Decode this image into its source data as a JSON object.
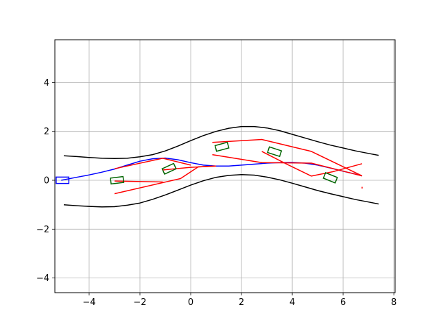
{
  "chart_data": {
    "type": "line",
    "title": "",
    "xlabel": "",
    "ylabel": "",
    "xlim": [
      -5.35,
      8.05
    ],
    "ylim": [
      -4.6,
      5.75
    ],
    "grid": true,
    "x_ticks": [
      -4,
      -2,
      0,
      2,
      4,
      6,
      8
    ],
    "y_ticks": [
      -4,
      -2,
      0,
      2,
      4
    ],
    "x_tick_labels": [
      "−4",
      "−2",
      "0",
      "2",
      "4",
      "6",
      "8"
    ],
    "y_tick_labels": [
      "−4",
      "−2",
      "0",
      "2",
      "4"
    ],
    "colors": {
      "road_boundary": "#000000",
      "path": "#0000ff",
      "rejected_paths": "#ff0000",
      "obstacles": "#006400",
      "start_vehicle": "#0000ff"
    },
    "series": [
      {
        "kind": "road_boundary_upper",
        "points": [
          [
            -5,
            1.0
          ],
          [
            -4.5,
            0.97
          ],
          [
            -4,
            0.93
          ],
          [
            -3.5,
            0.9
          ],
          [
            -3,
            0.89
          ],
          [
            -2.5,
            0.9
          ],
          [
            -2,
            0.96
          ],
          [
            -1.5,
            1.05
          ],
          [
            -1,
            1.2
          ],
          [
            -0.5,
            1.4
          ],
          [
            0,
            1.62
          ],
          [
            0.5,
            1.83
          ],
          [
            1,
            2.0
          ],
          [
            1.5,
            2.13
          ],
          [
            2,
            2.2
          ],
          [
            2.5,
            2.2
          ],
          [
            3,
            2.14
          ],
          [
            3.5,
            2.03
          ],
          [
            4,
            1.88
          ],
          [
            4.5,
            1.73
          ],
          [
            5,
            1.58
          ],
          [
            5.5,
            1.44
          ],
          [
            6,
            1.32
          ],
          [
            6.5,
            1.2
          ],
          [
            7,
            1.1
          ],
          [
            7.4,
            1.02
          ]
        ]
      },
      {
        "kind": "road_boundary_lower",
        "points": [
          [
            -5,
            -1.0
          ],
          [
            -4.5,
            -1.04
          ],
          [
            -4,
            -1.07
          ],
          [
            -3.5,
            -1.09
          ],
          [
            -3,
            -1.08
          ],
          [
            -2.5,
            -1.02
          ],
          [
            -2,
            -0.93
          ],
          [
            -1.5,
            -0.78
          ],
          [
            -1,
            -0.6
          ],
          [
            -0.5,
            -0.4
          ],
          [
            0,
            -0.2
          ],
          [
            0.5,
            -0.02
          ],
          [
            1,
            0.12
          ],
          [
            1.5,
            0.2
          ],
          [
            2,
            0.23
          ],
          [
            2.5,
            0.21
          ],
          [
            3,
            0.13
          ],
          [
            3.5,
            0.02
          ],
          [
            4,
            -0.12
          ],
          [
            4.5,
            -0.27
          ],
          [
            5,
            -0.42
          ],
          [
            5.5,
            -0.55
          ],
          [
            6,
            -0.67
          ],
          [
            6.5,
            -0.79
          ],
          [
            7,
            -0.89
          ],
          [
            7.4,
            -0.97
          ]
        ]
      },
      {
        "kind": "path",
        "points": [
          [
            -5.1,
            0.0
          ],
          [
            -4.5,
            0.12
          ],
          [
            -4,
            0.22
          ],
          [
            -3.5,
            0.33
          ],
          [
            -3,
            0.46
          ],
          [
            -2.5,
            0.62
          ],
          [
            -2,
            0.78
          ],
          [
            -1.5,
            0.88
          ],
          [
            -1,
            0.91
          ],
          [
            -0.5,
            0.84
          ],
          [
            0,
            0.72
          ],
          [
            0.5,
            0.62
          ],
          [
            1,
            0.58
          ],
          [
            1.5,
            0.58
          ],
          [
            2,
            0.62
          ],
          [
            2.5,
            0.66
          ],
          [
            3,
            0.7
          ],
          [
            3.5,
            0.72
          ],
          [
            4,
            0.73
          ],
          [
            4.5,
            0.7
          ],
          [
            5,
            0.62
          ],
          [
            5.5,
            0.5
          ],
          [
            6,
            0.37
          ],
          [
            6.5,
            0.25
          ],
          [
            6.75,
            0.18
          ]
        ]
      }
    ],
    "rejected_paths": [
      [
        [
          -3.0,
          0.47
        ],
        [
          -1.1,
          0.9
        ],
        [
          0.0,
          0.62
        ]
      ],
      [
        [
          -3.0,
          -0.03
        ],
        [
          -1.1,
          -0.07
        ]
      ],
      [
        [
          -3.0,
          -0.55
        ],
        [
          -0.4,
          0.07
        ],
        [
          0.3,
          0.55
        ],
        [
          1.0,
          0.58
        ]
      ],
      [
        [
          -1.1,
          0.42
        ],
        [
          0.0,
          0.53
        ],
        [
          1.0,
          0.58
        ]
      ],
      [
        [
          0.85,
          1.55
        ],
        [
          2.8,
          1.67
        ],
        [
          4.75,
          1.18
        ],
        [
          6.75,
          0.18
        ]
      ],
      [
        [
          0.85,
          1.05
        ],
        [
          2.8,
          0.72
        ],
        [
          4.75,
          0.7
        ],
        [
          6.75,
          0.18
        ]
      ],
      [
        [
          2.8,
          1.18
        ],
        [
          3.8,
          0.65
        ],
        [
          4.75,
          0.17
        ],
        [
          5.6,
          0.35
        ],
        [
          6.75,
          0.68
        ]
      ],
      [
        [
          6.75,
          -0.27
        ],
        [
          6.75,
          -0.34
        ]
      ]
    ],
    "obstacles": [
      {
        "center": [
          -2.9,
          0.0
        ],
        "width": 0.5,
        "height": 0.24,
        "angle_deg": 7
      },
      {
        "center": [
          -0.85,
          0.47
        ],
        "width": 0.5,
        "height": 0.24,
        "angle_deg": 25
      },
      {
        "center": [
          1.23,
          1.37
        ],
        "width": 0.5,
        "height": 0.24,
        "angle_deg": 15
      },
      {
        "center": [
          3.3,
          1.17
        ],
        "width": 0.5,
        "height": 0.24,
        "angle_deg": -18
      },
      {
        "center": [
          5.5,
          0.1
        ],
        "width": 0.5,
        "height": 0.24,
        "angle_deg": -22
      }
    ],
    "start_vehicle": {
      "center": [
        -5.05,
        0.0
      ],
      "width": 0.5,
      "height": 0.26,
      "angle_deg": 0
    }
  }
}
